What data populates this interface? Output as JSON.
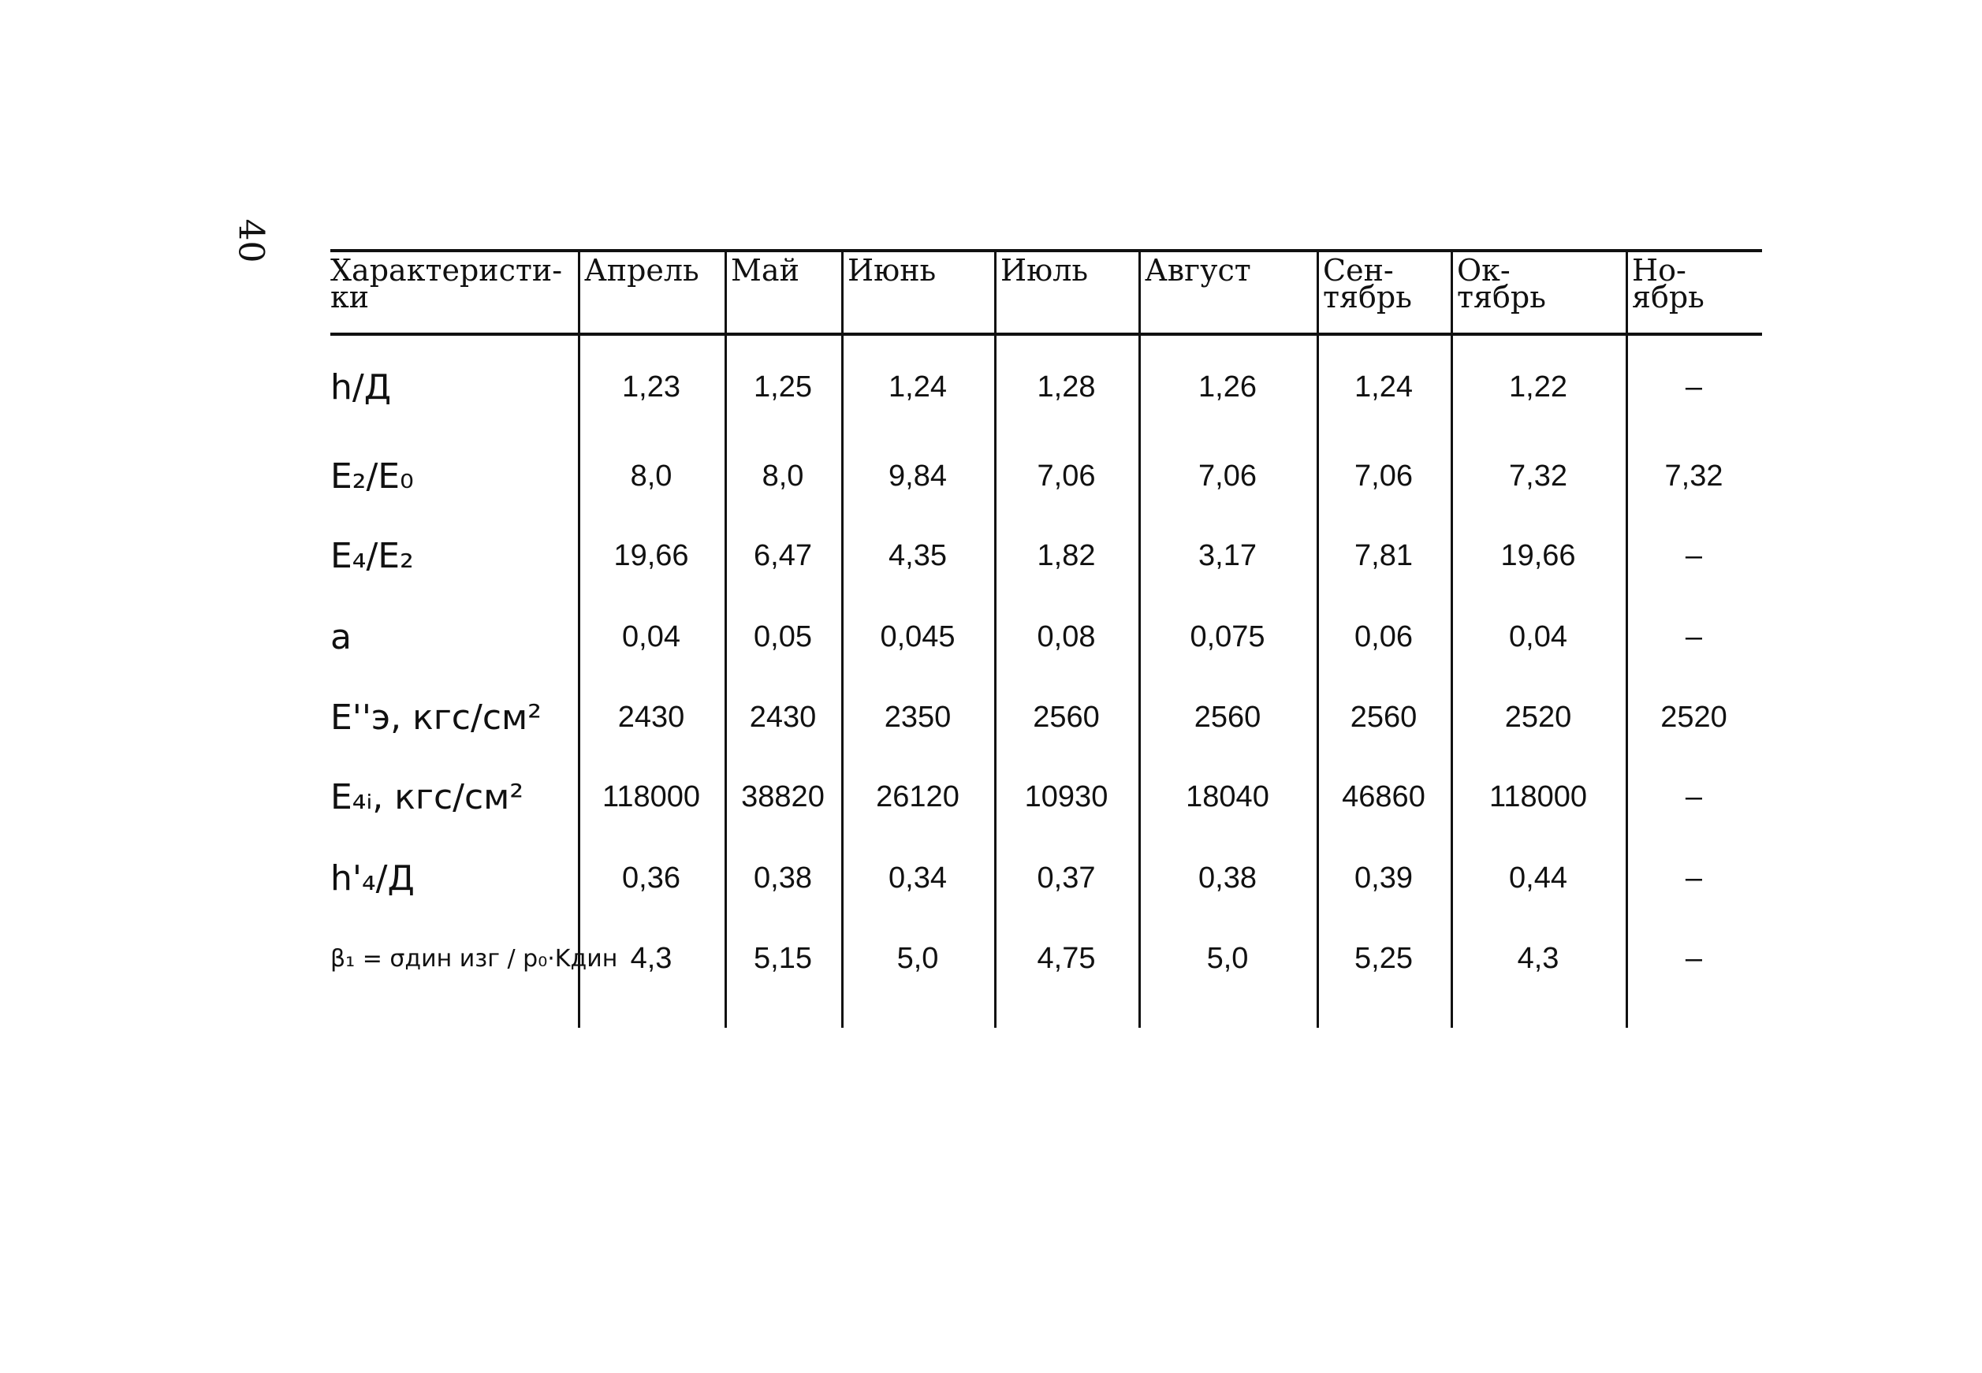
{
  "page_number": "40",
  "table": {
    "header": [
      "Характеристи-\nки",
      "Апрель",
      "Май",
      "Июнь",
      "Июль",
      "Август",
      "Сен-\nтябрь",
      "Ок-\nтябрь",
      "Но-\nябрь"
    ],
    "rows": [
      {
        "label": "h/Д",
        "values": [
          "1,23",
          "1,25",
          "1,24",
          "1,28",
          "1,26",
          "1,24",
          "1,22",
          "–"
        ]
      },
      {
        "label": "E₂/E₀",
        "values": [
          "8,0",
          "8,0",
          "9,84",
          "7,06",
          "7,06",
          "7,06",
          "7,32",
          "7,32"
        ]
      },
      {
        "label": "E₄/E₂",
        "values": [
          "19,66",
          "6,47",
          "4,35",
          "1,82",
          "3,17",
          "7,81",
          "19,66",
          "–"
        ]
      },
      {
        "label": "a",
        "values": [
          "0,04",
          "0,05",
          "0,045",
          "0,08",
          "0,075",
          "0,06",
          "0,04",
          "–"
        ]
      },
      {
        "label": "E''э, кгс/см²",
        "values": [
          "2430",
          "2430",
          "2350",
          "2560",
          "2560",
          "2560",
          "2520",
          "2520"
        ]
      },
      {
        "label": "E₄ᵢ, кгс/см²",
        "values": [
          "118000",
          "38820",
          "26120",
          "10930",
          "18040",
          "46860",
          "118000",
          "–"
        ]
      },
      {
        "label": "h'₄/Д",
        "values": [
          "0,36",
          "0,38",
          "0,34",
          "0,37",
          "0,38",
          "0,39",
          "0,44",
          "–"
        ]
      },
      {
        "label": "β₁ = σдин изг / p₀·Kдин",
        "values": [
          "4,3",
          "5,15",
          "5,0",
          "4,75",
          "5,0",
          "5,25",
          "4,3",
          "–"
        ]
      }
    ]
  }
}
